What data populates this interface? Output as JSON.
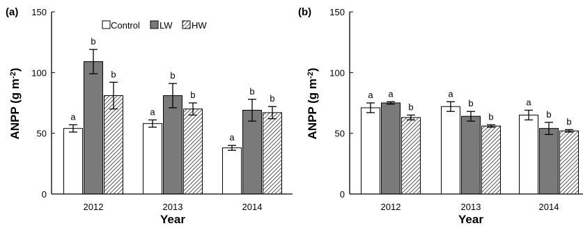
{
  "chart_data": [
    {
      "type": "bar",
      "panel_label": "(a)",
      "categories": [
        "2012",
        "2013",
        "2014"
      ],
      "xlabel": "Year",
      "ylabel": "ANPP (g m",
      "ylabel_sup": "-2",
      "ylabel_close": ")",
      "ylim": [
        0,
        150
      ],
      "yticks": [
        "0",
        "50",
        "100",
        "150"
      ],
      "legend": true,
      "legend_position": "top",
      "series": [
        {
          "name": "Control",
          "fill": "#ffffff",
          "values": [
            54,
            58,
            38
          ],
          "errors": [
            3,
            3,
            2
          ],
          "letters": [
            "a",
            "a",
            "a"
          ]
        },
        {
          "name": "LW",
          "fill": "#7a7a7a",
          "values": [
            109,
            81,
            69
          ],
          "errors": [
            10,
            10,
            9
          ],
          "letters": [
            "b",
            "b",
            "b"
          ]
        },
        {
          "name": "HW",
          "fill": "hatch",
          "values": [
            81,
            70,
            67
          ],
          "errors": [
            11,
            5,
            5
          ],
          "letters": [
            "b",
            "b",
            "b"
          ]
        }
      ]
    },
    {
      "type": "bar",
      "panel_label": "(b)",
      "categories": [
        "2012",
        "2013",
        "2014"
      ],
      "xlabel": "Year",
      "ylabel": "ANPP (g m",
      "ylabel_sup": "-2",
      "ylabel_close": ")",
      "ylim": [
        0,
        150
      ],
      "yticks": [
        "0",
        "50",
        "100",
        "150"
      ],
      "legend": false,
      "series": [
        {
          "name": "Control",
          "fill": "#ffffff",
          "values": [
            71,
            72,
            65
          ],
          "errors": [
            4,
            4,
            4
          ],
          "letters": [
            "a",
            "a",
            "a"
          ]
        },
        {
          "name": "LW",
          "fill": "#7a7a7a",
          "values": [
            75,
            64,
            54
          ],
          "errors": [
            1,
            4,
            5
          ],
          "letters": [
            "a",
            "b",
            "b"
          ]
        },
        {
          "name": "HW",
          "fill": "hatch",
          "values": [
            63,
            56,
            52
          ],
          "errors": [
            2,
            1,
            1
          ],
          "letters": [
            "b",
            "b",
            "b"
          ]
        }
      ]
    }
  ]
}
